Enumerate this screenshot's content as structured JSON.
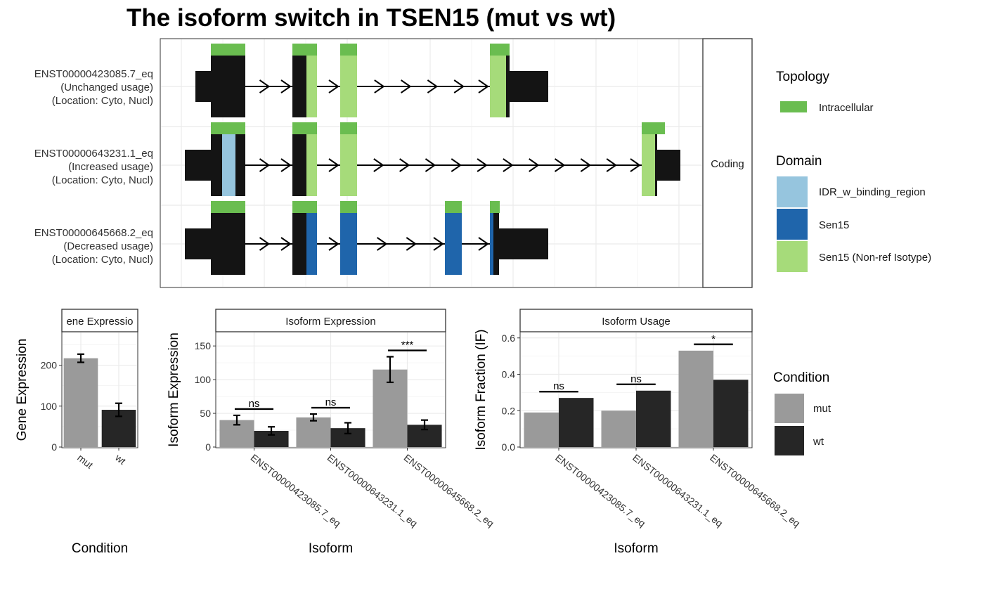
{
  "title": "The isoform switch in TSEN15 (mut vs wt)",
  "colors": {
    "intracellular": "#6abd50",
    "idr": "#96c5de",
    "sen15": "#1f65ab",
    "sen15_nonref": "#a6db7a",
    "exon": "#141414",
    "mut": "#9a9a9a",
    "wt": "#262626"
  },
  "transcript_panel": {
    "strip_label": "Coding",
    "transcripts": [
      {
        "id": "ENST00000423085.7_eq",
        "usage": "(Unchanged usage)",
        "location": "(Location: Cyto, Nucl)"
      },
      {
        "id": "ENST00000643231.1_eq",
        "usage": "(Increased usage)",
        "location": "(Location: Cyto, Nucl)"
      },
      {
        "id": "ENST00000645668.2_eq",
        "usage": "(Decreased usage)",
        "location": "(Location: Cyto, Nucl)"
      }
    ]
  },
  "legend": {
    "topology_title": "Topology",
    "topology_items": [
      {
        "label": "Intracellular",
        "color_key": "intracellular"
      }
    ],
    "domain_title": "Domain",
    "domain_items": [
      {
        "label": "IDR_w_binding_region",
        "color_key": "idr"
      },
      {
        "label": "Sen15",
        "color_key": "sen15"
      },
      {
        "label": "Sen15 (Non-ref Isotype)",
        "color_key": "sen15_nonref"
      }
    ],
    "condition_title": "Condition",
    "condition_items": [
      {
        "label": "mut",
        "color_key": "mut"
      },
      {
        "label": "wt",
        "color_key": "wt"
      }
    ]
  },
  "chart_data": [
    {
      "type": "bar",
      "strip": "Gene Expression",
      "strip_visible": "ene Expressio",
      "ylabel": "Gene Expression",
      "xlabel": "Condition",
      "categories": [
        "mut",
        "wt"
      ],
      "values": [
        217,
        91
      ],
      "errors": [
        10,
        16
      ],
      "ylim": [
        0,
        280
      ],
      "yticks": [
        0,
        100,
        200
      ],
      "grid": true
    },
    {
      "type": "bar",
      "strip": "Isoform Expression",
      "ylabel": "Isoform Expression",
      "xlabel": "Isoform",
      "categories": [
        "ENST00000423085.7_eq",
        "ENST00000643231.1_eq",
        "ENST00000645668.2_eq"
      ],
      "series": [
        {
          "name": "mut",
          "values": [
            40,
            44,
            115
          ],
          "errors": [
            7,
            5,
            19
          ]
        },
        {
          "name": "wt",
          "values": [
            24,
            28,
            33
          ],
          "errors": [
            6,
            8,
            7
          ]
        }
      ],
      "significance": [
        "ns",
        "ns",
        "***"
      ],
      "ylim": [
        0,
        170
      ],
      "yticks": [
        0,
        50,
        100,
        150
      ],
      "grid": true
    },
    {
      "type": "bar",
      "strip": "Isoform Usage",
      "ylabel": "Isoform Fraction (IF)",
      "xlabel": "Isoform",
      "categories": [
        "ENST00000423085.7_eq",
        "ENST00000643231.1_eq",
        "ENST00000645668.2_eq"
      ],
      "series": [
        {
          "name": "mut",
          "values": [
            0.19,
            0.2,
            0.53
          ]
        },
        {
          "name": "wt",
          "values": [
            0.27,
            0.31,
            0.37
          ]
        }
      ],
      "significance": [
        "ns",
        "ns",
        "*"
      ],
      "ylim": [
        0,
        0.63
      ],
      "yticks": [
        0.0,
        0.2,
        0.4,
        0.6
      ],
      "ytick_labels": [
        "0.0",
        "0.2",
        "0.4",
        "0.6"
      ],
      "grid": true
    }
  ]
}
